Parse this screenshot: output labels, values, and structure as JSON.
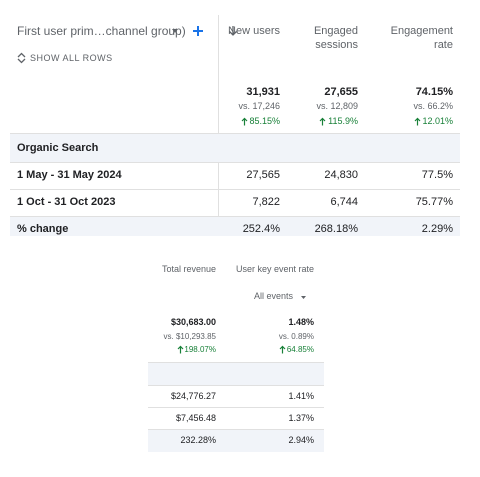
{
  "top_table": {
    "dimension": "First user prim…channel group)",
    "show_all_rows": "SHOW ALL ROWS",
    "columns": [
      "New users",
      "Engaged sessions",
      "Engagement rate"
    ],
    "totals": [
      {
        "value": "31,931",
        "compare": "vs. 17,246",
        "change": "85.15%"
      },
      {
        "value": "27,655",
        "compare": "vs. 12,809",
        "change": "115.9%"
      },
      {
        "value": "74.15%",
        "compare": "vs. 66.2%",
        "change": "12.01%"
      }
    ],
    "segment": "Organic Search",
    "rows": [
      {
        "label": "1 May - 31 May 2024",
        "cells": [
          "27,565",
          "24,830",
          "77.5%"
        ]
      },
      {
        "label": "1 Oct - 31 Oct 2023",
        "cells": [
          "7,822",
          "6,744",
          "75.77%"
        ]
      },
      {
        "label": "% change",
        "cells": [
          "252.4%",
          "268.18%",
          "2.29%"
        ]
      }
    ]
  },
  "bottom_table": {
    "columns": [
      "Total revenue",
      "User key event rate"
    ],
    "event_selector": "All events",
    "totals": [
      {
        "value": "$30,683.00",
        "compare": "vs. $10,293.85",
        "change": "198.07%"
      },
      {
        "value": "1.48%",
        "compare": "vs. 0.89%",
        "change": "64.85%"
      }
    ],
    "rows": [
      [
        "$24,776.27",
        "1.41%"
      ],
      [
        "$7,456.48",
        "1.37%"
      ],
      [
        "232.28%",
        "2.94%"
      ]
    ]
  }
}
